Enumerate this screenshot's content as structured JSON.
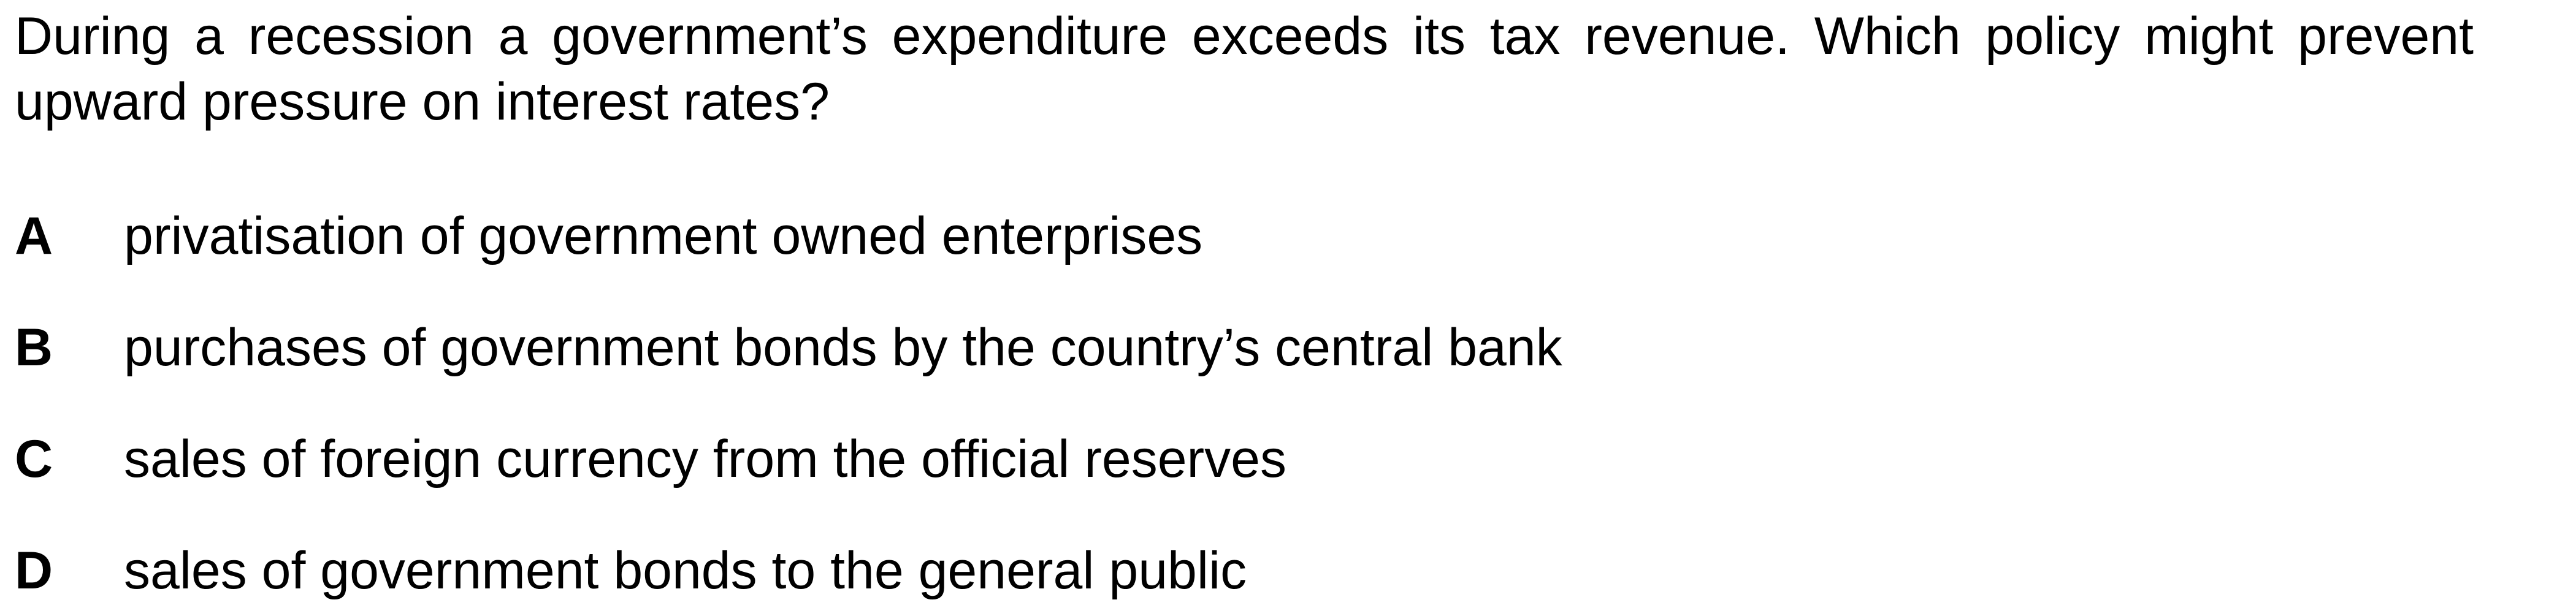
{
  "question": {
    "text": "During a recession a government’s expenditure exceeds its tax revenue. Which policy might prevent upward pressure on interest rates?"
  },
  "options": [
    {
      "letter": "A",
      "text": "privatisation of government owned enterprises"
    },
    {
      "letter": "B",
      "text": "purchases of government bonds by the country’s central bank"
    },
    {
      "letter": "C",
      "text": "sales of foreign currency from the official reserves"
    },
    {
      "letter": "D",
      "text": "sales of government bonds to the general public"
    }
  ]
}
